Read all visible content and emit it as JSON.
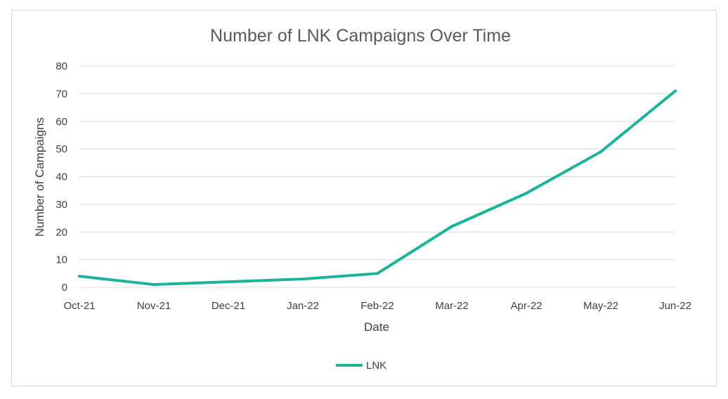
{
  "chart_data": {
    "type": "line",
    "title": "Number of LNK Campaigns Over Time",
    "xlabel": "Date",
    "ylabel": "Number of Campaigns",
    "categories": [
      "Oct-21",
      "Nov-21",
      "Dec-21",
      "Jan-22",
      "Feb-22",
      "Mar-22",
      "Apr-22",
      "May-22",
      "Jun-22"
    ],
    "series": [
      {
        "name": "LNK",
        "values": [
          4,
          1,
          2,
          3,
          5,
          22,
          34,
          49,
          71
        ]
      }
    ],
    "ylim": [
      0,
      80
    ],
    "yticks": [
      0,
      10,
      20,
      30,
      40,
      50,
      60,
      70,
      80
    ],
    "grid": true,
    "legend_position": "bottom",
    "colors": {
      "series": "#1db39a",
      "grid": "#d9d9d9",
      "text": "#404040",
      "title": "#595959"
    }
  }
}
